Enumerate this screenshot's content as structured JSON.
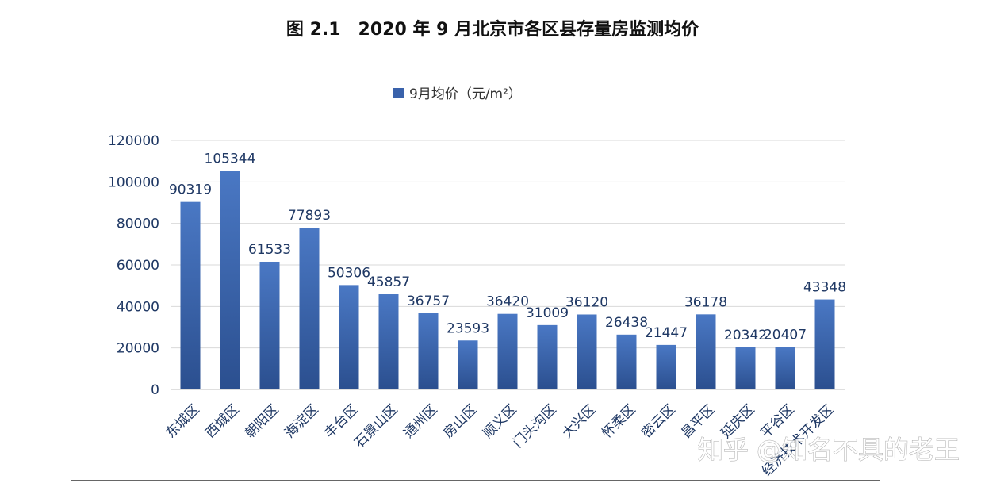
{
  "chart_data": {
    "type": "bar",
    "title": "图 2.1　2020 年 9 月北京市各区县存量房监测均价",
    "xlabel": "",
    "ylabel": "",
    "ylim": [
      0,
      120000
    ],
    "yticks": [
      0,
      20000,
      40000,
      60000,
      80000,
      100000,
      120000
    ],
    "legend_position": "top-center",
    "grid": true,
    "bar_color": "#3a62ab",
    "categories": [
      "东城区",
      "西城区",
      "朝阳区",
      "海淀区",
      "丰台区",
      "石景山区",
      "通州区",
      "房山区",
      "顺义区",
      "门头沟区",
      "大兴区",
      "怀柔区",
      "密云区",
      "昌平区",
      "延庆区",
      "平谷区",
      "经济技术开发区"
    ],
    "series": [
      {
        "name": "9月均价（元/m²）",
        "values": [
          90319,
          105344,
          61533,
          77893,
          50306,
          45857,
          36757,
          23593,
          36420,
          31009,
          36120,
          26438,
          21447,
          36178,
          20342,
          20407,
          43348
        ]
      }
    ]
  },
  "watermark": "知乎 @知名不具的老王"
}
